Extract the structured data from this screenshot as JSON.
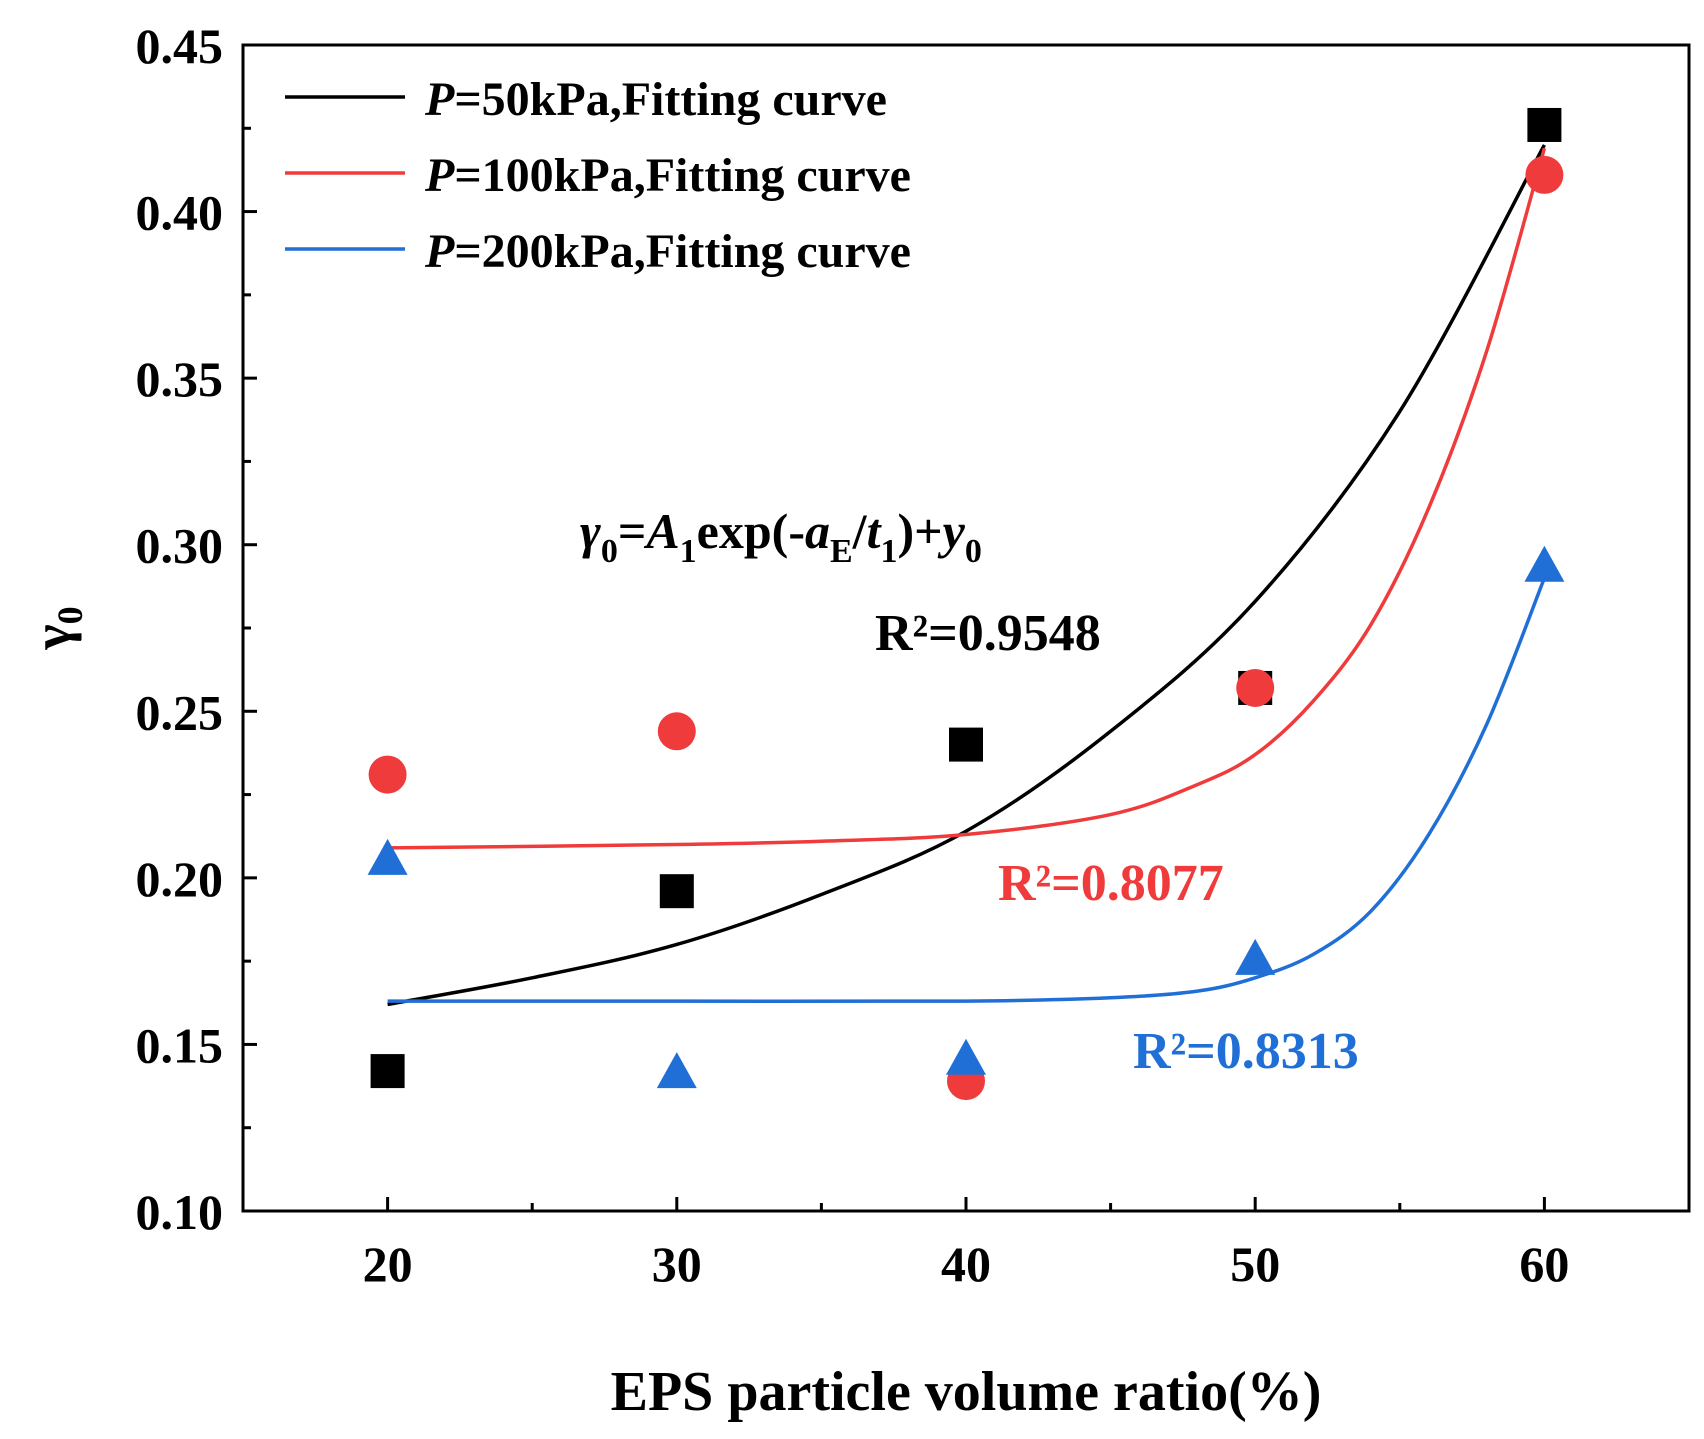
{
  "chart_data": {
    "type": "scatter",
    "title": "",
    "xlabel": "EPS particle volume ratio(%)",
    "ylabel": "γ",
    "ylabel_sub": "0",
    "xlim": [
      15,
      65
    ],
    "ylim": [
      0.1,
      0.45
    ],
    "x_ticks": [
      20,
      30,
      40,
      50,
      60
    ],
    "x_tick_labels": [
      "20",
      "30",
      "40",
      "50",
      "60"
    ],
    "y_ticks": [
      0.1,
      0.15,
      0.2,
      0.25,
      0.3,
      0.35,
      0.4,
      0.45
    ],
    "y_tick_labels": [
      "0.10",
      "0.15",
      "0.20",
      "0.25",
      "0.30",
      "0.35",
      "0.40",
      "0.45"
    ],
    "grid": false,
    "legend_position": "top-left",
    "series": [
      {
        "name": "P=50kPa,Fitting curve",
        "legend_prefix": "P",
        "legend_suffix": "=50kPa,Fitting curve",
        "color": "#000000",
        "marker": "square",
        "x": [
          20,
          30,
          40,
          50,
          60
        ],
        "y": [
          0.142,
          0.196,
          0.24,
          0.257,
          0.426
        ],
        "fit_x": [
          20,
          25,
          30,
          35,
          40,
          45,
          50,
          55,
          60
        ],
        "fit_y": [
          0.162,
          0.17,
          0.18,
          0.195,
          0.214,
          0.244,
          0.283,
          0.34,
          0.42
        ],
        "r2_label": "R²=0.9548"
      },
      {
        "name": "P=100kPa,Fitting curve",
        "legend_prefix": "P",
        "legend_suffix": "=100kPa,Fitting curve",
        "color": "#ef3b3b",
        "marker": "circle",
        "x": [
          20,
          30,
          40,
          50,
          60
        ],
        "y": [
          0.231,
          0.244,
          0.139,
          0.257,
          0.411
        ],
        "fit_x": [
          20,
          30,
          35,
          40,
          45,
          48,
          50,
          52,
          54,
          56,
          58,
          60
        ],
        "fit_y": [
          0.209,
          0.21,
          0.211,
          0.213,
          0.219,
          0.228,
          0.237,
          0.253,
          0.276,
          0.311,
          0.358,
          0.419
        ],
        "r2_label": "R²=0.8077"
      },
      {
        "name": "P=200kPa,Fitting curve",
        "legend_prefix": "P",
        "legend_suffix": "=200kPa,Fitting curve",
        "color": "#1f6fd6",
        "marker": "triangle",
        "x": [
          20,
          30,
          40,
          50,
          60
        ],
        "y": [
          0.205,
          0.141,
          0.145,
          0.175,
          0.293
        ],
        "fit_x": [
          20,
          30,
          40,
          45,
          48,
          50,
          52,
          54,
          56,
          58,
          60
        ],
        "fit_y": [
          0.163,
          0.163,
          0.163,
          0.164,
          0.166,
          0.17,
          0.177,
          0.19,
          0.213,
          0.246,
          0.29
        ],
        "r2_label": "R²=0.8313"
      }
    ],
    "equation": {
      "parts": [
        {
          "text": "γ",
          "style": "italic"
        },
        {
          "text": "0",
          "style": "sub"
        },
        {
          "text": "=",
          "style": "normal"
        },
        {
          "text": "A",
          "style": "italic"
        },
        {
          "text": "1",
          "style": "sub"
        },
        {
          "text": "exp(-",
          "style": "normal"
        },
        {
          "text": "a",
          "style": "italic"
        },
        {
          "text": "E",
          "style": "sub"
        },
        {
          "text": "/",
          "style": "normal"
        },
        {
          "text": "t",
          "style": "italic"
        },
        {
          "text": "1",
          "style": "sub"
        },
        {
          "text": ")+",
          "style": "normal"
        },
        {
          "text": "y",
          "style": "italic"
        },
        {
          "text": "0",
          "style": "sub"
        }
      ]
    }
  }
}
